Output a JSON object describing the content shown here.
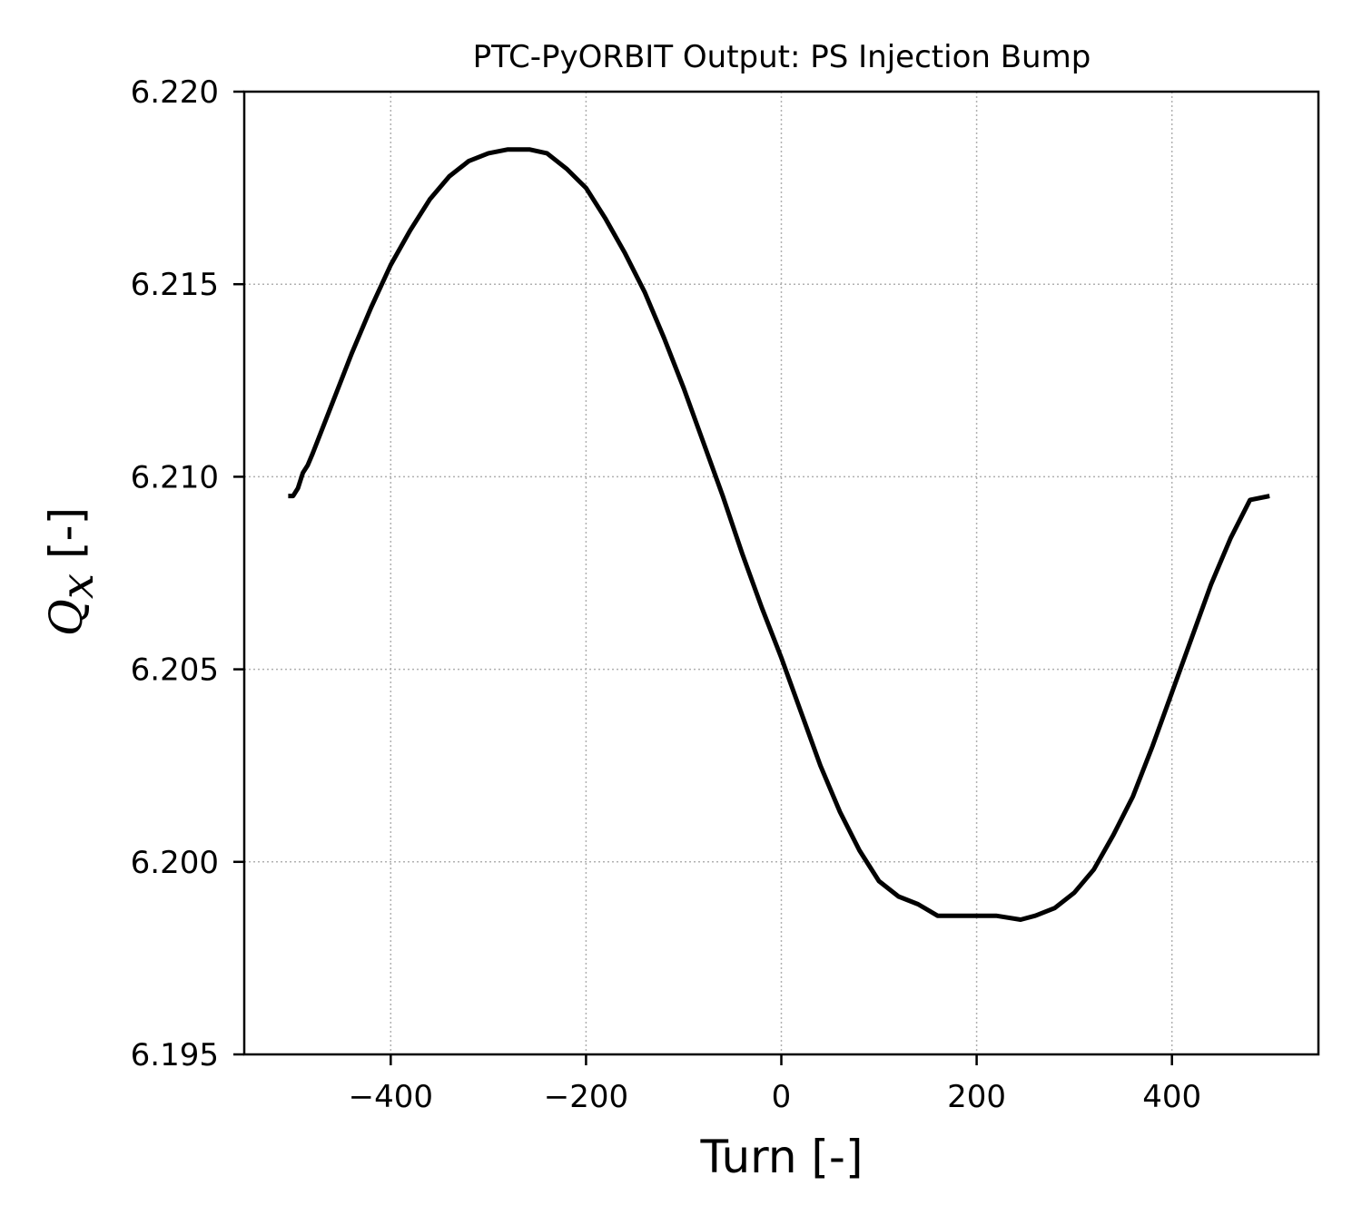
{
  "chart_data": {
    "type": "line",
    "title": "PTC-PyORBIT Output: PS Injection Bump",
    "xlabel": "Turn [-]",
    "ylabel": "Qx [-]",
    "ylabel_parts": {
      "symbol": "Q",
      "subscript": "x",
      "unit": "[-]"
    },
    "xlim": [
      -550,
      550
    ],
    "ylim": [
      6.195,
      6.22
    ],
    "xticks": [
      -400,
      -200,
      0,
      200,
      400
    ],
    "xtick_labels": [
      "−400",
      "−200",
      "0",
      "200",
      "400"
    ],
    "yticks": [
      6.195,
      6.2,
      6.205,
      6.21,
      6.215,
      6.22
    ],
    "ytick_labels": [
      "6.195",
      "6.200",
      "6.205",
      "6.210",
      "6.215",
      "6.220"
    ],
    "grid": true,
    "line_color": "#000000",
    "series": [
      {
        "x": [
          -505,
          -500,
          -495,
          -490,
          -485,
          -480,
          -460,
          -440,
          -420,
          -400,
          -380,
          -360,
          -340,
          -320,
          -300,
          -280,
          -258,
          -240,
          -220,
          -200,
          -180,
          -160,
          -140,
          -120,
          -100,
          -80,
          -60,
          -40,
          -20,
          0,
          20,
          40,
          60,
          80,
          100,
          120,
          140,
          160,
          180,
          200,
          220,
          245,
          260,
          280,
          300,
          320,
          340,
          360,
          380,
          400,
          420,
          440,
          460,
          480,
          500
        ],
        "y": [
          6.2095,
          6.2095,
          6.2097,
          6.2101,
          6.2103,
          6.2106,
          6.2119,
          6.2132,
          6.2144,
          6.2155,
          6.2164,
          6.2172,
          6.2178,
          6.2182,
          6.2184,
          6.2185,
          6.2185,
          6.2184,
          6.218,
          6.2175,
          6.2167,
          6.2158,
          6.2148,
          6.2136,
          6.2123,
          6.2109,
          6.2095,
          6.208,
          6.2066,
          6.2053,
          6.2039,
          6.2025,
          6.2013,
          6.2003,
          6.1995,
          6.1991,
          6.1989,
          6.1986,
          6.1986,
          6.1986,
          6.1986,
          6.1985,
          6.1986,
          6.1988,
          6.1992,
          6.1998,
          6.2007,
          6.2017,
          6.203,
          6.2044,
          6.2058,
          6.2072,
          6.2084,
          6.2094,
          6.2095
        ]
      }
    ]
  }
}
